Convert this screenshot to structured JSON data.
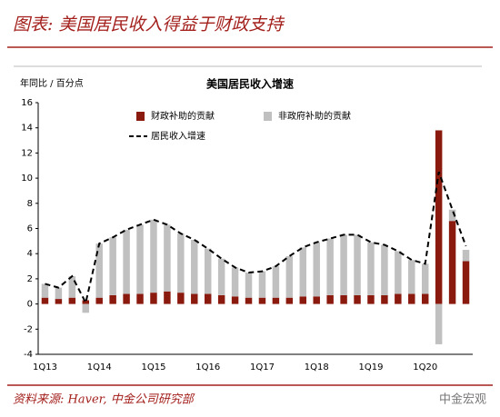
{
  "page_title": "图表: 美国居民收入得益于财政支持",
  "source": "资料来源: Haver, 中金公司研究部",
  "watermark": "中金宏观",
  "chart_data": {
    "type": "stacked_bar_line",
    "title": "美国居民收入增速",
    "y_label": "年同比 / 百分点",
    "categories": [
      "1Q13",
      null,
      null,
      null,
      "1Q14",
      null,
      null,
      null,
      "1Q15",
      null,
      null,
      null,
      "1Q16",
      null,
      null,
      null,
      "1Q17",
      null,
      null,
      null,
      "1Q18",
      null,
      null,
      null,
      "1Q19",
      null,
      null,
      null,
      "1Q20",
      null,
      null,
      null
    ],
    "series": [
      {
        "name": "财政补助的贡献",
        "type": "bar",
        "color": "#8b1a0e",
        "values": [
          0.5,
          0.4,
          0.5,
          0.3,
          0.5,
          0.7,
          0.8,
          0.8,
          0.9,
          1.0,
          0.9,
          0.8,
          0.8,
          0.7,
          0.6,
          0.5,
          0.5,
          0.5,
          0.5,
          0.6,
          0.6,
          0.7,
          0.7,
          0.7,
          0.7,
          0.7,
          0.8,
          0.8,
          0.8,
          13.8,
          6.6,
          3.4
        ]
      },
      {
        "name": "非政府补助的贡献",
        "type": "bar",
        "color": "#c0c0c0",
        "values": [
          1.1,
          0.9,
          1.7,
          -0.7,
          4.3,
          4.6,
          5.1,
          5.5,
          5.8,
          5.3,
          4.7,
          4.3,
          3.6,
          2.9,
          2.3,
          2.0,
          2.1,
          2.5,
          3.3,
          3.9,
          4.3,
          4.5,
          4.8,
          4.8,
          4.2,
          4.0,
          3.4,
          2.7,
          2.4,
          -3.2,
          0.9,
          0.9
        ]
      },
      {
        "name": "居民收入增速",
        "type": "line",
        "color": "#000000",
        "values": [
          1.6,
          1.3,
          2.2,
          0.1,
          4.8,
          5.3,
          5.9,
          6.3,
          6.7,
          6.3,
          5.6,
          5.1,
          4.4,
          3.6,
          2.9,
          2.5,
          2.6,
          3.0,
          3.8,
          4.5,
          4.9,
          5.2,
          5.5,
          5.5,
          4.9,
          4.7,
          4.2,
          3.5,
          3.2,
          10.5,
          7.5,
          4.6
        ]
      }
    ],
    "ylim": [
      -4,
      16
    ],
    "yticks": [
      -4,
      -2,
      0,
      2,
      4,
      6,
      8,
      10,
      12,
      14,
      16
    ],
    "grid": false
  }
}
